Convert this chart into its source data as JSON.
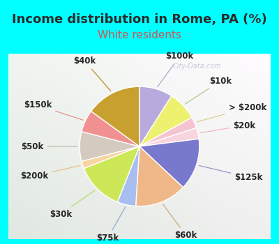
{
  "title": "Income distribution in Rome, PA (%)",
  "subtitle": "White residents",
  "fig_bg": "#00ffff",
  "panel_color": "#e8f8f2",
  "slices": [
    {
      "label": "$100k",
      "value": 9,
      "color": "#b8aadc"
    },
    {
      "label": "$10k",
      "value": 8,
      "color": "#eef070"
    },
    {
      "label": "> $200k",
      "value": 3,
      "color": "#f4c4d0"
    },
    {
      "label": "$20k",
      "value": 3,
      "color": "#f8d4dc"
    },
    {
      "label": "$125k",
      "value": 14,
      "color": "#7878cc"
    },
    {
      "label": "$60k",
      "value": 14,
      "color": "#f0b888"
    },
    {
      "label": "$75k",
      "value": 5,
      "color": "#a8bef0"
    },
    {
      "label": "$30k",
      "value": 13,
      "color": "#cce858"
    },
    {
      "label": "$200k",
      "value": 2,
      "color": "#f8d4a0"
    },
    {
      "label": "$50k",
      "value": 8,
      "color": "#d4cac0"
    },
    {
      "label": "$150k",
      "value": 6,
      "color": "#f09090"
    },
    {
      "label": "$40k",
      "value": 15,
      "color": "#c8a030"
    }
  ],
  "title_color": "#2a2a2a",
  "subtitle_color": "#cc5555",
  "title_fontsize": 13,
  "subtitle_fontsize": 11,
  "label_fontsize": 8.5,
  "watermark": "City-Data.com",
  "watermark_color": "#b0b8c8",
  "line_colors": {
    "$100k": "#a0b8d0",
    "$10k": "#a8c8a0",
    "$200k_gt": "#d4d090",
    "$20k": "#f0c0c8",
    "$125k": "#a8b0d8",
    "$60k": "#d0b898",
    "$75k": "#a0b8d8",
    "$30k": "#c0d898",
    "$200k": "#f0c8a0",
    "$50k": "#c8c0b0",
    "$150k": "#f0a8a8",
    "$40k": "#c0a848"
  }
}
